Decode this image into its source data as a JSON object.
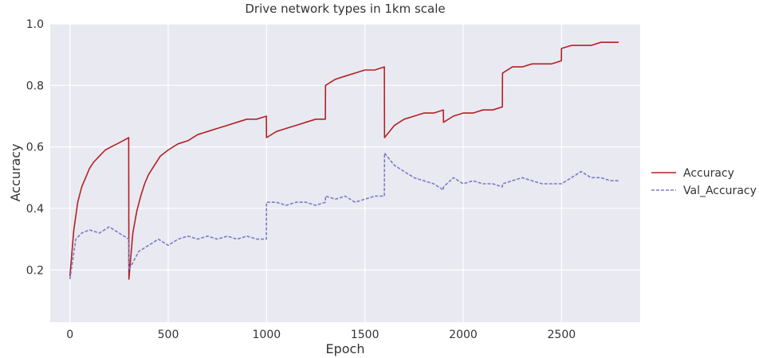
{
  "chart_data": {
    "type": "line",
    "title": "Drive network types in 1km scale",
    "xlabel": "Epoch",
    "ylabel": "Accuracy",
    "xlim": [
      -100,
      2900
    ],
    "ylim": [
      0.03,
      1.0
    ],
    "xticks": [
      0,
      500,
      1000,
      1500,
      2000,
      2500
    ],
    "yticks": [
      0.2,
      0.4,
      0.6,
      0.8,
      1.0
    ],
    "grid": true,
    "legend_position": "right",
    "background": "#e9e9f2",
    "series": [
      {
        "name": "Accuracy",
        "color": "#b22222",
        "style": "solid",
        "points": [
          [
            0,
            0.18
          ],
          [
            20,
            0.33
          ],
          [
            40,
            0.42
          ],
          [
            60,
            0.47
          ],
          [
            80,
            0.5
          ],
          [
            100,
            0.53
          ],
          [
            120,
            0.55
          ],
          [
            150,
            0.57
          ],
          [
            180,
            0.59
          ],
          [
            210,
            0.6
          ],
          [
            240,
            0.61
          ],
          [
            270,
            0.62
          ],
          [
            299,
            0.63
          ],
          [
            300,
            0.17
          ],
          [
            320,
            0.32
          ],
          [
            340,
            0.39
          ],
          [
            360,
            0.44
          ],
          [
            380,
            0.48
          ],
          [
            400,
            0.51
          ],
          [
            430,
            0.54
          ],
          [
            460,
            0.57
          ],
          [
            500,
            0.59
          ],
          [
            550,
            0.61
          ],
          [
            600,
            0.62
          ],
          [
            650,
            0.64
          ],
          [
            700,
            0.65
          ],
          [
            750,
            0.66
          ],
          [
            800,
            0.67
          ],
          [
            850,
            0.68
          ],
          [
            900,
            0.69
          ],
          [
            950,
            0.69
          ],
          [
            999,
            0.7
          ],
          [
            1000,
            0.63
          ],
          [
            1050,
            0.65
          ],
          [
            1100,
            0.66
          ],
          [
            1150,
            0.67
          ],
          [
            1200,
            0.68
          ],
          [
            1250,
            0.69
          ],
          [
            1299,
            0.69
          ],
          [
            1300,
            0.8
          ],
          [
            1350,
            0.82
          ],
          [
            1400,
            0.83
          ],
          [
            1450,
            0.84
          ],
          [
            1500,
            0.85
          ],
          [
            1550,
            0.85
          ],
          [
            1599,
            0.86
          ],
          [
            1600,
            0.63
          ],
          [
            1650,
            0.67
          ],
          [
            1700,
            0.69
          ],
          [
            1750,
            0.7
          ],
          [
            1800,
            0.71
          ],
          [
            1850,
            0.71
          ],
          [
            1899,
            0.72
          ],
          [
            1900,
            0.68
          ],
          [
            1950,
            0.7
          ],
          [
            2000,
            0.71
          ],
          [
            2050,
            0.71
          ],
          [
            2100,
            0.72
          ],
          [
            2150,
            0.72
          ],
          [
            2199,
            0.73
          ],
          [
            2200,
            0.84
          ],
          [
            2250,
            0.86
          ],
          [
            2300,
            0.86
          ],
          [
            2350,
            0.87
          ],
          [
            2400,
            0.87
          ],
          [
            2450,
            0.87
          ],
          [
            2499,
            0.88
          ],
          [
            2500,
            0.92
          ],
          [
            2550,
            0.93
          ],
          [
            2600,
            0.93
          ],
          [
            2650,
            0.93
          ],
          [
            2700,
            0.94
          ],
          [
            2750,
            0.94
          ],
          [
            2790,
            0.94
          ]
        ]
      },
      {
        "name": "Val_Accuracy",
        "color": "#7b7bc8",
        "style": "dashed",
        "points": [
          [
            0,
            0.17
          ],
          [
            30,
            0.3
          ],
          [
            60,
            0.32
          ],
          [
            100,
            0.33
          ],
          [
            150,
            0.32
          ],
          [
            200,
            0.34
          ],
          [
            250,
            0.32
          ],
          [
            299,
            0.3
          ],
          [
            300,
            0.2
          ],
          [
            350,
            0.26
          ],
          [
            400,
            0.28
          ],
          [
            450,
            0.3
          ],
          [
            500,
            0.28
          ],
          [
            550,
            0.3
          ],
          [
            600,
            0.31
          ],
          [
            650,
            0.3
          ],
          [
            700,
            0.31
          ],
          [
            750,
            0.3
          ],
          [
            800,
            0.31
          ],
          [
            850,
            0.3
          ],
          [
            900,
            0.31
          ],
          [
            950,
            0.3
          ],
          [
            999,
            0.3
          ],
          [
            1000,
            0.42
          ],
          [
            1050,
            0.42
          ],
          [
            1100,
            0.41
          ],
          [
            1150,
            0.42
          ],
          [
            1200,
            0.42
          ],
          [
            1250,
            0.41
          ],
          [
            1299,
            0.42
          ],
          [
            1300,
            0.44
          ],
          [
            1350,
            0.43
          ],
          [
            1400,
            0.44
          ],
          [
            1450,
            0.42
          ],
          [
            1500,
            0.43
          ],
          [
            1550,
            0.44
          ],
          [
            1599,
            0.44
          ],
          [
            1600,
            0.58
          ],
          [
            1650,
            0.54
          ],
          [
            1700,
            0.52
          ],
          [
            1750,
            0.5
          ],
          [
            1800,
            0.49
          ],
          [
            1850,
            0.48
          ],
          [
            1899,
            0.46
          ],
          [
            1900,
            0.47
          ],
          [
            1950,
            0.5
          ],
          [
            2000,
            0.48
          ],
          [
            2050,
            0.49
          ],
          [
            2100,
            0.48
          ],
          [
            2150,
            0.48
          ],
          [
            2199,
            0.47
          ],
          [
            2200,
            0.48
          ],
          [
            2250,
            0.49
          ],
          [
            2300,
            0.5
          ],
          [
            2350,
            0.49
          ],
          [
            2400,
            0.48
          ],
          [
            2450,
            0.48
          ],
          [
            2499,
            0.48
          ],
          [
            2500,
            0.48
          ],
          [
            2550,
            0.5
          ],
          [
            2600,
            0.52
          ],
          [
            2650,
            0.5
          ],
          [
            2700,
            0.5
          ],
          [
            2750,
            0.49
          ],
          [
            2790,
            0.49
          ]
        ]
      }
    ]
  }
}
